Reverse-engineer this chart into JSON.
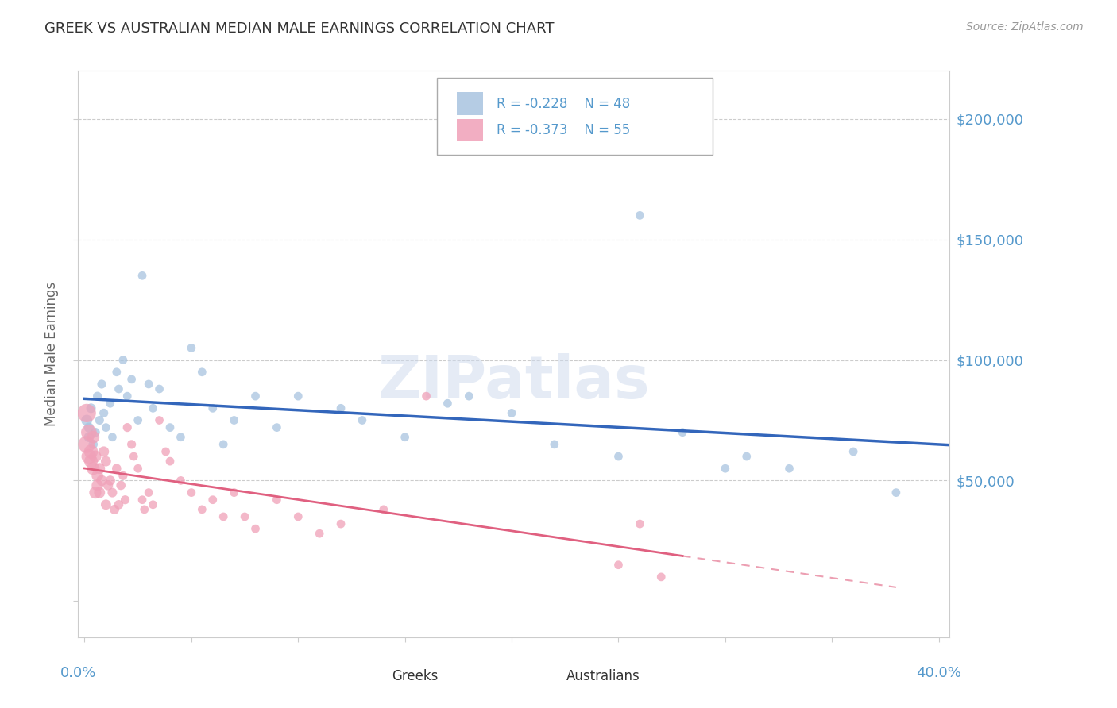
{
  "title": "GREEK VS AUSTRALIAN MEDIAN MALE EARNINGS CORRELATION CHART",
  "source": "Source: ZipAtlas.com",
  "ylabel": "Median Male Earnings",
  "yticks": [
    0,
    50000,
    100000,
    150000,
    200000
  ],
  "ytick_labels_right": [
    "",
    "$50,000",
    "$100,000",
    "$150,000",
    "$200,000"
  ],
  "y_min": -15000,
  "y_max": 220000,
  "x_min": -0.003,
  "x_max": 0.405,
  "watermark": "ZIPatlas",
  "blue_scatter_color": "#a8c4e0",
  "pink_scatter_color": "#f0a0b8",
  "trend_blue_color": "#3366bb",
  "trend_pink_color": "#e06080",
  "axis_label_color": "#5599cc",
  "greek_x": [
    0.001,
    0.002,
    0.002,
    0.003,
    0.004,
    0.005,
    0.006,
    0.007,
    0.008,
    0.009,
    0.01,
    0.012,
    0.013,
    0.015,
    0.016,
    0.018,
    0.02,
    0.022,
    0.025,
    0.027,
    0.03,
    0.032,
    0.035,
    0.04,
    0.045,
    0.05,
    0.055,
    0.06,
    0.065,
    0.07,
    0.08,
    0.09,
    0.1,
    0.12,
    0.13,
    0.15,
    0.17,
    0.18,
    0.2,
    0.22,
    0.25,
    0.28,
    0.3,
    0.33,
    0.36,
    0.38,
    0.26,
    0.31
  ],
  "greek_y": [
    75000,
    68000,
    72000,
    80000,
    65000,
    70000,
    85000,
    75000,
    90000,
    78000,
    72000,
    82000,
    68000,
    95000,
    88000,
    100000,
    85000,
    92000,
    75000,
    135000,
    90000,
    80000,
    88000,
    72000,
    68000,
    105000,
    95000,
    80000,
    65000,
    75000,
    85000,
    72000,
    85000,
    80000,
    75000,
    68000,
    82000,
    85000,
    78000,
    65000,
    60000,
    70000,
    55000,
    55000,
    62000,
    45000,
    160000,
    60000
  ],
  "greek_sizes": [
    100,
    80,
    80,
    75,
    70,
    70,
    65,
    65,
    65,
    65,
    60,
    60,
    60,
    60,
    60,
    60,
    60,
    60,
    60,
    60,
    60,
    60,
    60,
    60,
    60,
    60,
    60,
    60,
    60,
    60,
    60,
    60,
    60,
    60,
    60,
    60,
    60,
    60,
    60,
    60,
    60,
    60,
    60,
    60,
    60,
    60,
    60,
    60
  ],
  "aus_x": [
    0.001,
    0.001,
    0.002,
    0.002,
    0.003,
    0.003,
    0.004,
    0.004,
    0.005,
    0.005,
    0.006,
    0.006,
    0.007,
    0.007,
    0.008,
    0.009,
    0.01,
    0.01,
    0.011,
    0.012,
    0.013,
    0.014,
    0.015,
    0.016,
    0.017,
    0.018,
    0.019,
    0.02,
    0.022,
    0.023,
    0.025,
    0.027,
    0.028,
    0.03,
    0.032,
    0.035,
    0.038,
    0.04,
    0.045,
    0.05,
    0.055,
    0.06,
    0.065,
    0.07,
    0.075,
    0.08,
    0.09,
    0.1,
    0.11,
    0.12,
    0.14,
    0.16,
    0.25,
    0.26,
    0.27
  ],
  "aus_y": [
    78000,
    65000,
    70000,
    60000,
    62000,
    58000,
    55000,
    68000,
    60000,
    45000,
    52000,
    48000,
    55000,
    45000,
    50000,
    62000,
    58000,
    40000,
    48000,
    50000,
    45000,
    38000,
    55000,
    40000,
    48000,
    52000,
    42000,
    72000,
    65000,
    60000,
    55000,
    42000,
    38000,
    45000,
    40000,
    75000,
    62000,
    58000,
    50000,
    45000,
    38000,
    42000,
    35000,
    45000,
    35000,
    30000,
    42000,
    35000,
    28000,
    32000,
    38000,
    85000,
    15000,
    32000,
    10000
  ],
  "aus_sizes": [
    280,
    240,
    200,
    180,
    160,
    150,
    140,
    130,
    120,
    120,
    110,
    110,
    100,
    100,
    95,
    90,
    85,
    85,
    80,
    80,
    75,
    75,
    70,
    70,
    70,
    65,
    65,
    65,
    65,
    60,
    60,
    60,
    60,
    60,
    60,
    60,
    60,
    60,
    60,
    60,
    60,
    60,
    60,
    60,
    60,
    60,
    60,
    60,
    60,
    60,
    60,
    60,
    60,
    60,
    60
  ]
}
